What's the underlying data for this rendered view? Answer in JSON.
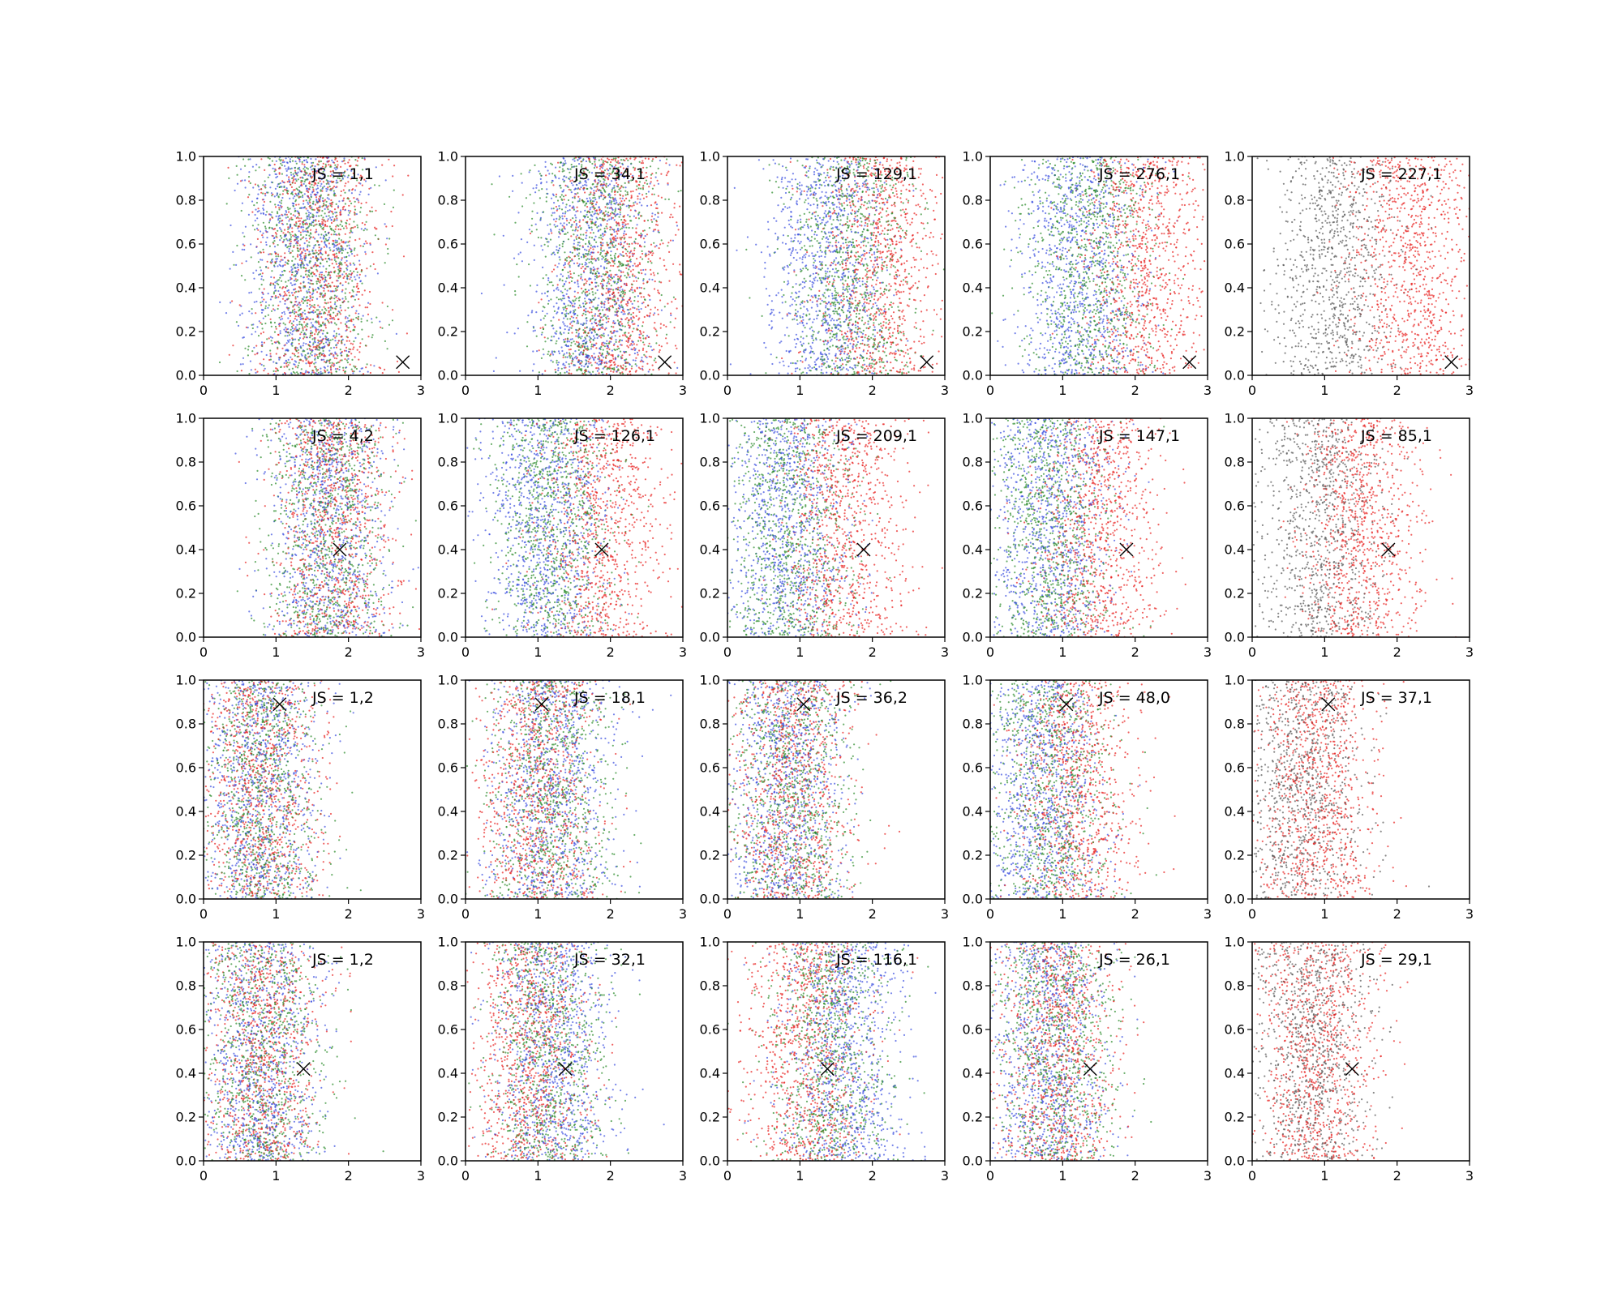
{
  "chart_data": {
    "type": "scatter",
    "layout": {
      "rows": 4,
      "cols": 5
    },
    "xlim": [
      0,
      3
    ],
    "ylim": [
      0,
      1
    ],
    "xticks": [
      "0",
      "1",
      "2",
      "3"
    ],
    "yticks": [
      "0.0",
      "0.2",
      "0.4",
      "0.6",
      "0.8",
      "1.0"
    ],
    "grid": false,
    "colors": {
      "red": "#e8211f",
      "blue": "#3b4fe0",
      "green": "#2a8a2a",
      "gray": "#555555",
      "marker": "#000000"
    },
    "column_palettes": [
      [
        "red",
        "blue",
        "green"
      ],
      [
        "red",
        "blue",
        "green"
      ],
      [
        "red",
        "blue",
        "green"
      ],
      [
        "red",
        "blue",
        "green"
      ],
      [
        "gray",
        "red"
      ]
    ],
    "row_markers": [
      {
        "x": 2.75,
        "y": 0.06
      },
      {
        "x": 1.88,
        "y": 0.4
      },
      {
        "x": 1.05,
        "y": 0.89
      },
      {
        "x": 1.38,
        "y": 0.42
      }
    ],
    "panels": [
      {
        "label": "JS = 1,1",
        "groups": {
          "red": 1.6,
          "blue": 1.4,
          "green": 1.5
        }
      },
      {
        "label": "JS = 34,1",
        "groups": {
          "red": 2.1,
          "blue": 1.7,
          "green": 1.8
        }
      },
      {
        "label": "JS = 129,1",
        "groups": {
          "red": 2.1,
          "blue": 1.4,
          "green": 1.7
        }
      },
      {
        "label": "JS = 276,1",
        "groups": {
          "red": 2.15,
          "blue": 1.25,
          "green": 1.4
        }
      },
      {
        "label": "JS = 227,1",
        "groups": {
          "red": 2.2,
          "gray": 1.1
        }
      },
      {
        "label": "JS = 4,2",
        "groups": {
          "red": 1.8,
          "blue": 1.7,
          "green": 1.7
        }
      },
      {
        "label": "JS = 126,1",
        "groups": {
          "red": 1.9,
          "blue": 1.1,
          "green": 1.2
        }
      },
      {
        "label": "JS = 209,1",
        "groups": {
          "red": 1.6,
          "blue": 0.8,
          "green": 0.9
        }
      },
      {
        "label": "JS = 147,1",
        "groups": {
          "red": 1.5,
          "blue": 0.8,
          "green": 0.8
        }
      },
      {
        "label": "JS = 85,1",
        "groups": {
          "red": 1.5,
          "gray": 0.9
        }
      },
      {
        "label": "JS = 1,2",
        "groups": {
          "red": 0.8,
          "blue": 0.8,
          "green": 0.8
        }
      },
      {
        "label": "JS = 18,1",
        "groups": {
          "red": 1.0,
          "blue": 1.2,
          "green": 1.2
        }
      },
      {
        "label": "JS = 36,2",
        "groups": {
          "red": 0.9,
          "blue": 0.8,
          "green": 0.9
        }
      },
      {
        "label": "JS = 48,0",
        "groups": {
          "red": 1.2,
          "blue": 0.7,
          "green": 0.8
        }
      },
      {
        "label": "JS = 37,1",
        "groups": {
          "red": 0.9,
          "gray": 0.7
        }
      },
      {
        "label": "JS = 1,2",
        "groups": {
          "red": 0.8,
          "blue": 0.8,
          "green": 0.8
        }
      },
      {
        "label": "JS = 32,1",
        "groups": {
          "red": 0.9,
          "blue": 1.2,
          "green": 1.1
        }
      },
      {
        "label": "JS = 116,1",
        "groups": {
          "red": 1.1,
          "blue": 1.6,
          "green": 1.4
        }
      },
      {
        "label": "JS = 26,1",
        "groups": {
          "red": 0.9,
          "blue": 0.8,
          "green": 0.9
        }
      },
      {
        "label": "JS = 29,1",
        "groups": {
          "red": 0.9,
          "gray": 0.8
        }
      }
    ]
  }
}
